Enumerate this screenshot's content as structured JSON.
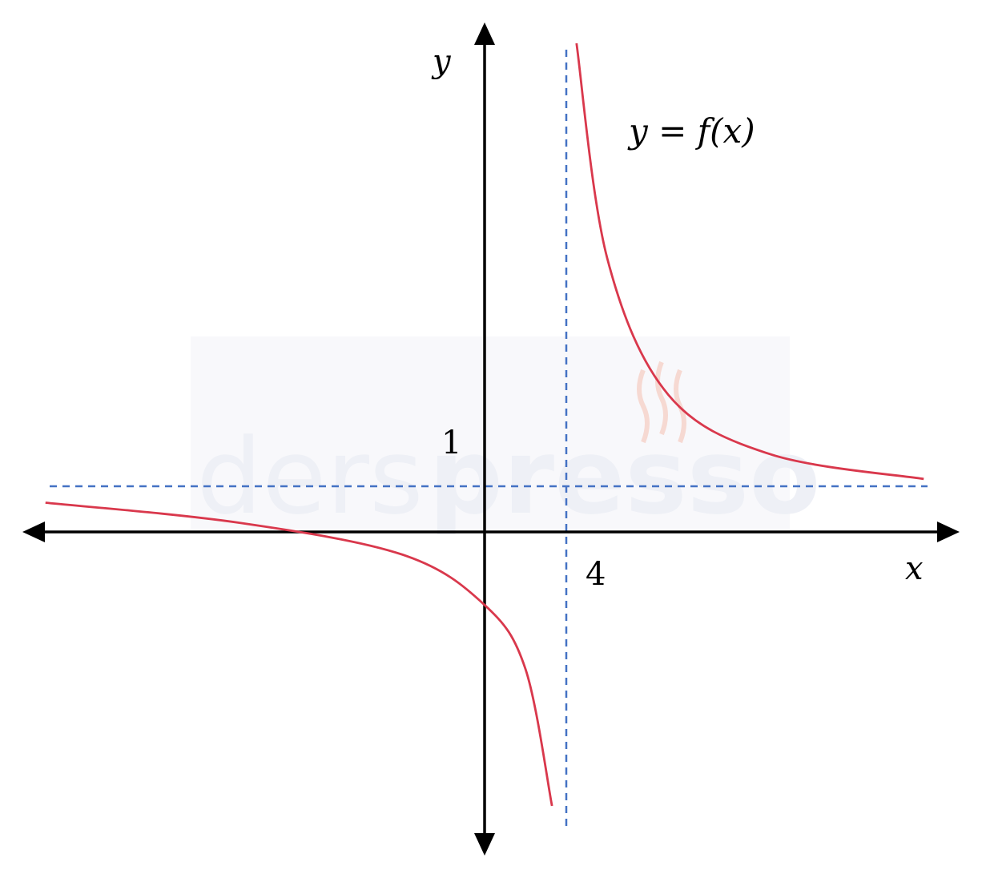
{
  "chart_data": {
    "type": "line",
    "function_label": "y = f(x)",
    "x_axis_label": "x",
    "y_axis_label": "y",
    "vertical_asymptote": 4,
    "horizontal_asymptote": 1,
    "vertical_asymptote_tick_label": "4",
    "horizontal_asymptote_tick_label": "1",
    "xlim": [
      -23,
      23
    ],
    "ylim": [
      -6.5,
      10.9
    ],
    "grid": false,
    "series": [
      {
        "values_left_branch": [
          {
            "x": -21.5,
            "y": 0.64
          },
          {
            "x": -12,
            "y": 0.2
          },
          {
            "x": -4,
            "y": -0.5
          },
          {
            "x": 0,
            "y": -1.6
          },
          {
            "x": 2,
            "y": -3.0
          },
          {
            "x": 3.3,
            "y": -6.0
          }
        ],
        "values_right_branch": [
          {
            "x": 4.5,
            "y": 10.7
          },
          {
            "x": 6,
            "y": 6.0
          },
          {
            "x": 9,
            "y": 3.0
          },
          {
            "x": 14,
            "y": 1.7
          },
          {
            "x": 21.5,
            "y": 1.16
          }
        ],
        "color": "#d9384c"
      }
    ],
    "colors": {
      "curve": "#d9384c",
      "asymptotes": "#4472c4",
      "axes": "#000000"
    }
  },
  "watermark": {
    "light_part": "ders",
    "bold_part": "presso"
  }
}
